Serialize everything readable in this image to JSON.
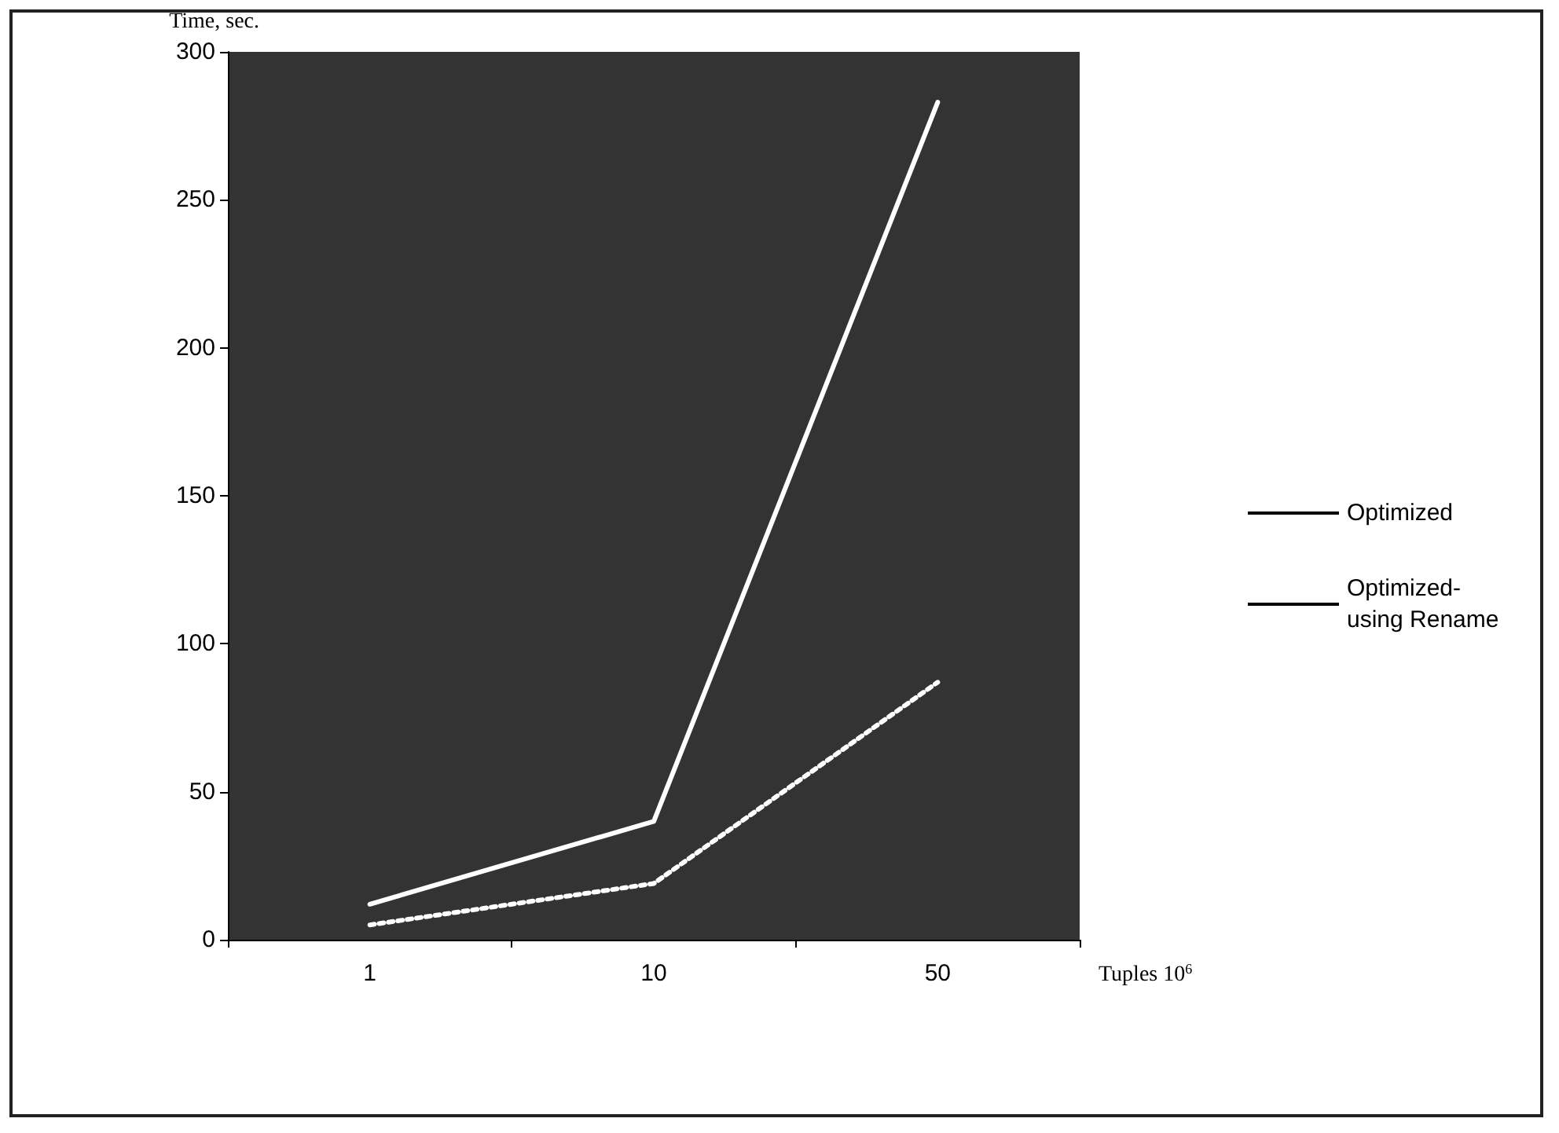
{
  "chart_data": {
    "type": "line",
    "categories": [
      "1",
      "10",
      "50"
    ],
    "xlabel": "Tuples 10$^{6}$",
    "ylabel": "Time, sec.",
    "ylim": [
      0,
      300
    ],
    "yticks": [
      0,
      50,
      100,
      150,
      200,
      250,
      300
    ],
    "grid": false,
    "legend": "right",
    "marker": "none",
    "series": [
      {
        "name": "Optimized",
        "color": "#ffffff",
        "line_style": "solid",
        "values": [
          12,
          40,
          283
        ]
      },
      {
        "name": "Optimized- using Rename",
        "color": "#ffffff",
        "line_style": "dotted",
        "values": [
          5,
          19,
          87
        ]
      }
    ]
  }
}
